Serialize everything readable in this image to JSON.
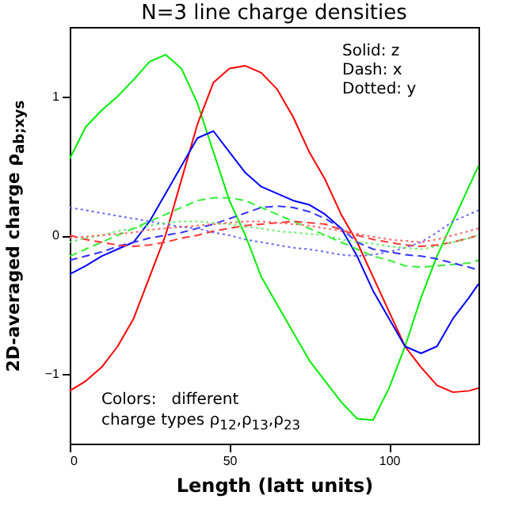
{
  "chart_data": {
    "type": "line",
    "title": "N=3 line charge densities",
    "xlabel": "Length (latt units)",
    "ylabel": "2D-averaged charge ρ$_{ab;xys}$",
    "x": [
      0,
      5,
      10,
      15,
      20,
      25,
      30,
      35,
      40,
      45,
      50,
      55,
      60,
      65,
      70,
      75,
      80,
      85,
      90,
      95,
      100,
      105,
      110,
      115,
      120,
      125,
      128
    ],
    "xlim": [
      0,
      128
    ],
    "xticks": [
      0,
      50,
      100
    ],
    "ylim": [
      -1.5,
      1.5
    ],
    "yticks": [
      -1,
      0,
      1
    ],
    "grid": false,
    "annotations": [
      "Solid: z",
      "Dash: x",
      "Dotted: y",
      "Colors:   different",
      "charge types ρ$_{12}$,ρ$_{13}$,ρ$_{23}$"
    ],
    "series": [
      {
        "color": "#00ee00",
        "line_style": "solid",
        "values": [
          0.55,
          0.78,
          0.9,
          1.0,
          1.12,
          1.25,
          1.3,
          1.2,
          0.95,
          0.6,
          0.25,
          0.0,
          -0.3,
          -0.5,
          -0.7,
          -0.9,
          -1.05,
          -1.2,
          -1.32,
          -1.33,
          -1.1,
          -0.8,
          -0.45,
          -0.15,
          0.1,
          0.35,
          0.5
        ]
      },
      {
        "color": "#ff0000",
        "line_style": "solid",
        "values": [
          -1.12,
          -1.05,
          -0.95,
          -0.8,
          -0.6,
          -0.3,
          0.0,
          0.4,
          0.8,
          1.1,
          1.2,
          1.22,
          1.17,
          1.05,
          0.85,
          0.6,
          0.4,
          0.15,
          -0.05,
          -0.3,
          -0.55,
          -0.8,
          -0.95,
          -1.08,
          -1.13,
          -1.12,
          -1.1
        ]
      },
      {
        "color": "#0000ff",
        "line_style": "solid",
        "values": [
          -0.28,
          -0.22,
          -0.15,
          -0.1,
          -0.05,
          0.1,
          0.3,
          0.5,
          0.7,
          0.75,
          0.6,
          0.45,
          0.35,
          0.3,
          0.25,
          0.22,
          0.15,
          0.05,
          -0.15,
          -0.4,
          -0.6,
          -0.8,
          -0.85,
          -0.8,
          -0.6,
          -0.45,
          -0.35
        ]
      },
      {
        "color": "#33ee33",
        "line_style": "dashed",
        "values": [
          -0.15,
          -0.1,
          -0.05,
          0.0,
          0.05,
          0.1,
          0.15,
          0.2,
          0.25,
          0.27,
          0.27,
          0.25,
          0.2,
          0.15,
          0.1,
          0.05,
          0.0,
          -0.05,
          -0.1,
          -0.15,
          -0.18,
          -0.22,
          -0.23,
          -0.22,
          -0.21,
          -0.2,
          -0.18
        ]
      },
      {
        "color": "#3333ff",
        "line_style": "dashed",
        "values": [
          -0.18,
          -0.15,
          -0.12,
          -0.08,
          -0.05,
          -0.02,
          0.0,
          0.02,
          0.05,
          0.08,
          0.12,
          0.16,
          0.2,
          0.21,
          0.2,
          0.17,
          0.12,
          0.05,
          -0.05,
          -0.1,
          -0.12,
          -0.14,
          -0.15,
          -0.17,
          -0.2,
          -0.23,
          -0.25
        ]
      },
      {
        "color": "#ff3333",
        "line_style": "dashed",
        "values": [
          0.0,
          -0.03,
          -0.05,
          -0.07,
          -0.08,
          -0.07,
          -0.05,
          -0.02,
          0.0,
          0.03,
          0.05,
          0.07,
          0.08,
          0.09,
          0.1,
          0.09,
          0.08,
          0.04,
          0.0,
          -0.03,
          -0.05,
          -0.07,
          -0.08,
          -0.07,
          -0.05,
          -0.02,
          0.0
        ]
      },
      {
        "color": "#6666ff",
        "line_style": "dotted",
        "values": [
          0.2,
          0.18,
          0.16,
          0.14,
          0.12,
          0.1,
          0.08,
          0.06,
          0.05,
          0.02,
          0.0,
          -0.03,
          -0.05,
          -0.07,
          -0.09,
          -0.1,
          -0.12,
          -0.14,
          -0.15,
          -0.14,
          -0.12,
          -0.09,
          -0.05,
          0.02,
          0.1,
          0.15,
          0.18
        ]
      },
      {
        "color": "#66ee66",
        "line_style": "dotted",
        "values": [
          -0.05,
          -0.02,
          0.0,
          0.03,
          0.05,
          0.07,
          0.09,
          0.1,
          0.1,
          0.09,
          0.08,
          0.06,
          0.05,
          0.03,
          0.02,
          0.01,
          0.0,
          -0.03,
          -0.05,
          -0.06,
          -0.08,
          -0.09,
          -0.1,
          -0.08,
          -0.05,
          -0.02,
          0.0
        ]
      },
      {
        "color": "#ff6666",
        "line_style": "dotted",
        "values": [
          -0.02,
          -0.01,
          0.0,
          0.01,
          0.02,
          0.04,
          0.05,
          0.06,
          0.07,
          0.08,
          0.09,
          0.1,
          0.1,
          0.09,
          0.08,
          0.07,
          0.05,
          0.03,
          0.01,
          -0.01,
          -0.03,
          -0.04,
          -0.05,
          -0.03,
          0.0,
          0.03,
          0.05
        ]
      }
    ]
  }
}
